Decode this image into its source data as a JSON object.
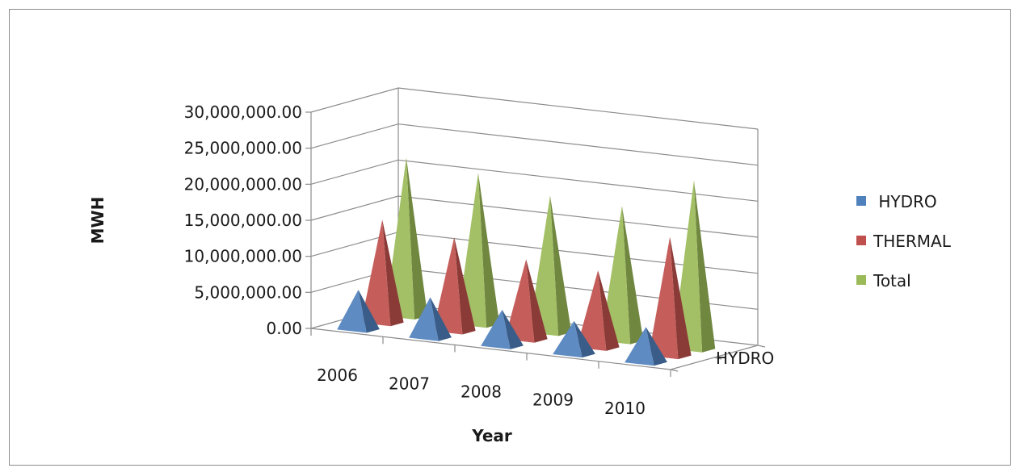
{
  "chart_data": {
    "type": "bar",
    "style": "3d-pyramid",
    "title": "",
    "xlabel": "Year",
    "ylabel": "MWH",
    "depth_label": "HYDRO",
    "categories": [
      "2006",
      "2007",
      "2008",
      "2009",
      "2010"
    ],
    "ylim": [
      0,
      30000000
    ],
    "y_ticks": [
      "0.00",
      "5,000,000.00",
      "10,000,000.00",
      "15,000,000.00",
      "20,000,000.00",
      "25,000,000.00",
      "30,000,000.00"
    ],
    "grid": true,
    "legend_position": "right",
    "series": [
      {
        "name": "HYDRO",
        "label": " HYDRO",
        "color": "#4f81bd",
        "values": [
          5500000,
          5600000,
          5000000,
          4600000,
          4900000
        ]
      },
      {
        "name": "THERMAL",
        "label": "THERMAL",
        "color": "#c0504d",
        "values": [
          14300000,
          13000000,
          11100000,
          10700000,
          16500000
        ]
      },
      {
        "name": "Total",
        "label": "Total",
        "color": "#9bbb59",
        "values": [
          22000000,
          21000000,
          19000000,
          18700000,
          23400000
        ]
      }
    ]
  }
}
